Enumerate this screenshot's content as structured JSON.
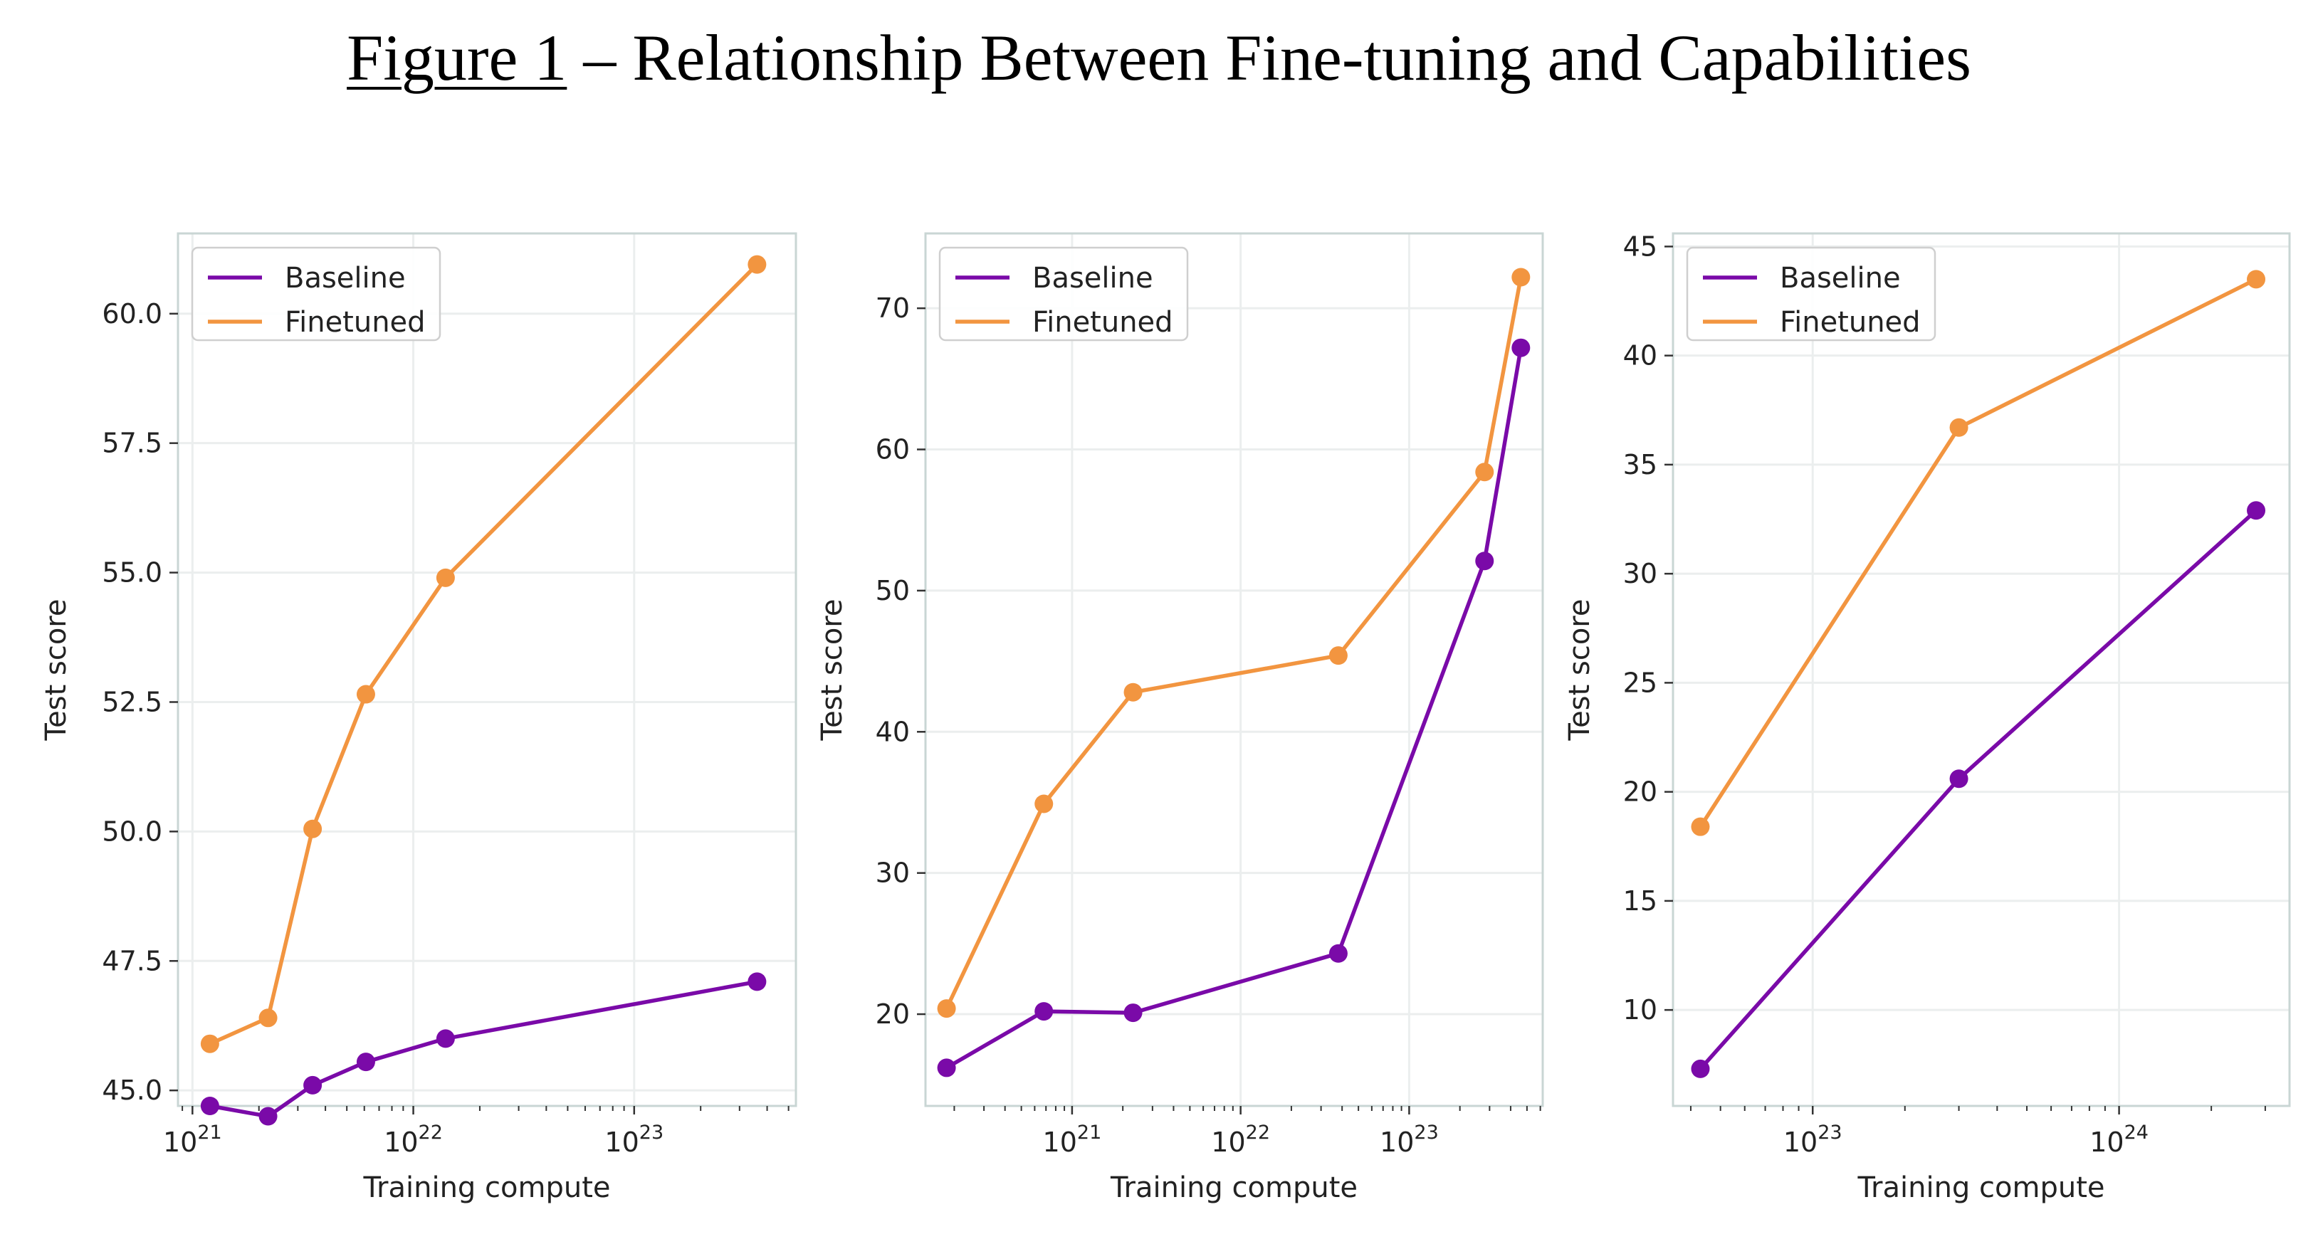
{
  "figure": {
    "number_label": "Figure 1",
    "title_rest": " – Relationship Between Fine-tuning and Capabilities"
  },
  "colors": {
    "baseline": "#7a0aa8",
    "finetuned": "#f29540",
    "grid": "#ebeeee",
    "frame": "#c9d6d4"
  },
  "chart_data": [
    {
      "type": "line",
      "xscale": "log",
      "xlabel": "Training compute",
      "ylabel": "Test score",
      "grid": true,
      "legend_position": "top-left",
      "xlim": [
        8.6e+20,
        5.4e+23
      ],
      "ylim": [
        44.7,
        61.55
      ],
      "yticks": [
        {
          "v": 45.0,
          "t": "45.0"
        },
        {
          "v": 47.5,
          "t": "47.5"
        },
        {
          "v": 50.0,
          "t": "50.0"
        },
        {
          "v": 52.5,
          "t": "52.5"
        },
        {
          "v": 55.0,
          "t": "55.0"
        },
        {
          "v": 57.5,
          "t": "57.5"
        },
        {
          "v": 60.0,
          "t": "60.0"
        }
      ],
      "xticks": [
        {
          "v": 1e+21,
          "b": "10",
          "e": "21"
        },
        {
          "v": 1e+22,
          "b": "10",
          "e": "22"
        },
        {
          "v": 1e+23,
          "b": "10",
          "e": "23"
        }
      ],
      "series": [
        {
          "name": "Baseline",
          "color_key": "baseline",
          "x": [
            1.2e+21,
            2.2e+21,
            3.5e+21,
            6.1e+21,
            1.4e+22,
            3.6e+23
          ],
          "y": [
            44.7,
            44.5,
            45.1,
            45.55,
            46.0,
            47.1
          ]
        },
        {
          "name": "Finetuned",
          "color_key": "finetuned",
          "x": [
            1.2e+21,
            2.2e+21,
            3.5e+21,
            6.1e+21,
            1.4e+22,
            3.6e+23
          ],
          "y": [
            45.9,
            46.4,
            50.05,
            52.65,
            54.9,
            60.95
          ]
        }
      ]
    },
    {
      "type": "line",
      "xscale": "log",
      "xlabel": "Training compute",
      "ylabel": "Test score",
      "grid": true,
      "legend_position": "top-left",
      "xlim": [
        1.35e+20,
        6.2e+23
      ],
      "ylim": [
        13.5,
        75.3
      ],
      "yticks": [
        {
          "v": 20,
          "t": "20"
        },
        {
          "v": 30,
          "t": "30"
        },
        {
          "v": 40,
          "t": "40"
        },
        {
          "v": 50,
          "t": "50"
        },
        {
          "v": 60,
          "t": "60"
        },
        {
          "v": 70,
          "t": "70"
        }
      ],
      "xticks": [
        {
          "v": 1e+21,
          "b": "10",
          "e": "21"
        },
        {
          "v": 1e+22,
          "b": "10",
          "e": "22"
        },
        {
          "v": 1e+23,
          "b": "10",
          "e": "23"
        }
      ],
      "series": [
        {
          "name": "Baseline",
          "color_key": "baseline",
          "x": [
            1.8e+20,
            6.8e+20,
            2.3e+21,
            3.8e+22,
            2.8e+23,
            4.6e+23
          ],
          "y": [
            16.2,
            20.2,
            20.1,
            24.3,
            52.1,
            67.2
          ]
        },
        {
          "name": "Finetuned",
          "color_key": "finetuned",
          "x": [
            1.8e+20,
            6.8e+20,
            2.3e+21,
            3.8e+22,
            2.8e+23,
            4.6e+23
          ],
          "y": [
            20.4,
            34.9,
            42.8,
            45.4,
            58.4,
            72.2
          ]
        }
      ]
    },
    {
      "type": "line",
      "xscale": "log",
      "xlabel": "Training compute",
      "ylabel": "Test score",
      "grid": true,
      "legend_position": "top-left",
      "xlim": [
        3.5e+22,
        3.6e+24
      ],
      "ylim": [
        5.6,
        45.6
      ],
      "yticks": [
        {
          "v": 10,
          "t": "10"
        },
        {
          "v": 15,
          "t": "15"
        },
        {
          "v": 20,
          "t": "20"
        },
        {
          "v": 25,
          "t": "25"
        },
        {
          "v": 30,
          "t": "30"
        },
        {
          "v": 35,
          "t": "35"
        },
        {
          "v": 40,
          "t": "40"
        },
        {
          "v": 45,
          "t": "45"
        }
      ],
      "xticks": [
        {
          "v": 1e+23,
          "b": "10",
          "e": "23"
        },
        {
          "v": 1e+24,
          "b": "10",
          "e": "24"
        }
      ],
      "series": [
        {
          "name": "Baseline",
          "color_key": "baseline",
          "x": [
            4.3e+22,
            3e+23,
            2.8e+24
          ],
          "y": [
            7.3,
            20.6,
            32.9
          ]
        },
        {
          "name": "Finetuned",
          "color_key": "finetuned",
          "x": [
            4.3e+22,
            3e+23,
            2.8e+24
          ],
          "y": [
            18.4,
            36.7,
            43.5
          ]
        }
      ]
    }
  ]
}
